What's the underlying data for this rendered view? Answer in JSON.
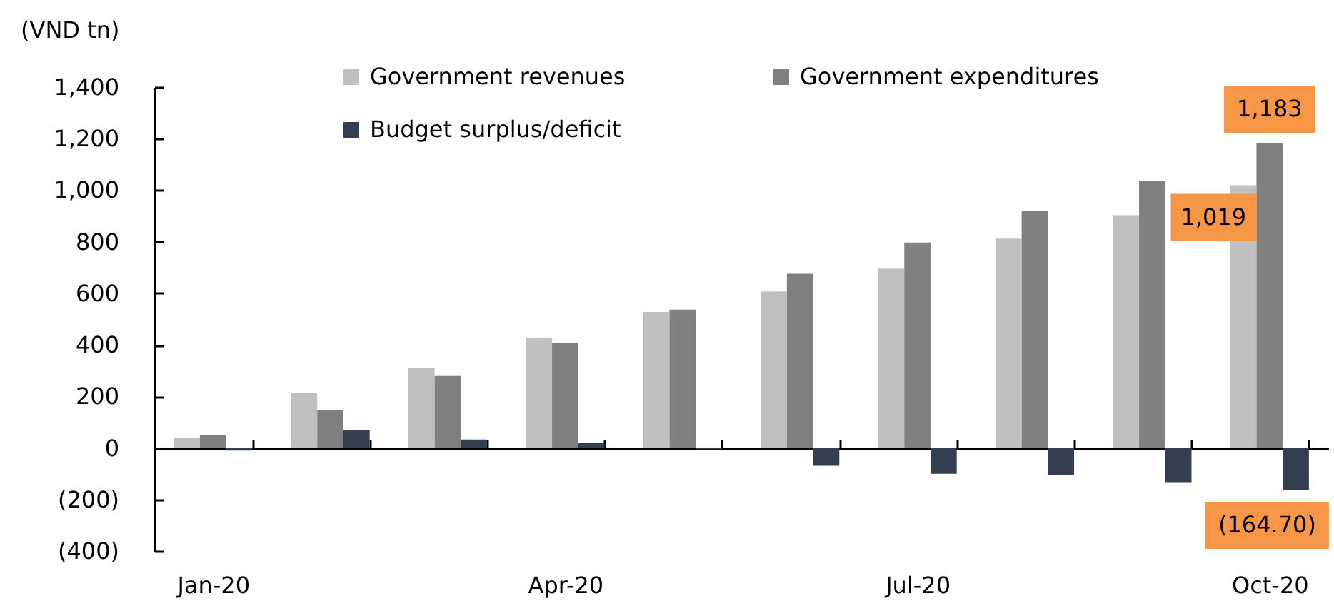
{
  "chart_data": {
    "type": "bar",
    "ylabel": "(VND tn)",
    "categories": [
      "Jan-20",
      null,
      null,
      "Apr-20",
      null,
      null,
      "Jul-20",
      null,
      null,
      "Oct-20"
    ],
    "series": [
      {
        "name": "Government revenues",
        "color": "#c0c0c0",
        "values": [
          40,
          212,
          312,
          426,
          528,
          607,
          696,
          812,
          903,
          1019
        ],
        "value_labels": [
          null,
          null,
          null,
          null,
          null,
          null,
          null,
          null,
          null,
          "1,019"
        ]
      },
      {
        "name": "Government expenditures",
        "color": "#808080",
        "values": [
          50,
          146,
          279,
          408,
          537,
          676,
          797,
          919,
          1037,
          1183
        ],
        "value_labels": [
          null,
          null,
          null,
          null,
          null,
          null,
          null,
          null,
          null,
          "1,183"
        ]
      },
      {
        "name": "Budget surplus/deficit",
        "color": "#333f50",
        "values": [
          -10,
          70,
          33,
          18,
          -5,
          -69,
          -100,
          -105,
          -133,
          -164.7
        ],
        "value_labels": [
          null,
          null,
          null,
          null,
          null,
          null,
          null,
          null,
          null,
          "(164.70)"
        ]
      }
    ],
    "ylim": [
      -400,
      1400
    ],
    "yticks": [
      {
        "value": -400,
        "label": "(400)"
      },
      {
        "value": -200,
        "label": "(200)"
      },
      0,
      200,
      400,
      600,
      800,
      {
        "value": 1000,
        "label": "1,000"
      },
      {
        "value": 1200,
        "label": "1,200"
      },
      {
        "value": 1400,
        "label": "1,400"
      }
    ],
    "legend": "top"
  }
}
